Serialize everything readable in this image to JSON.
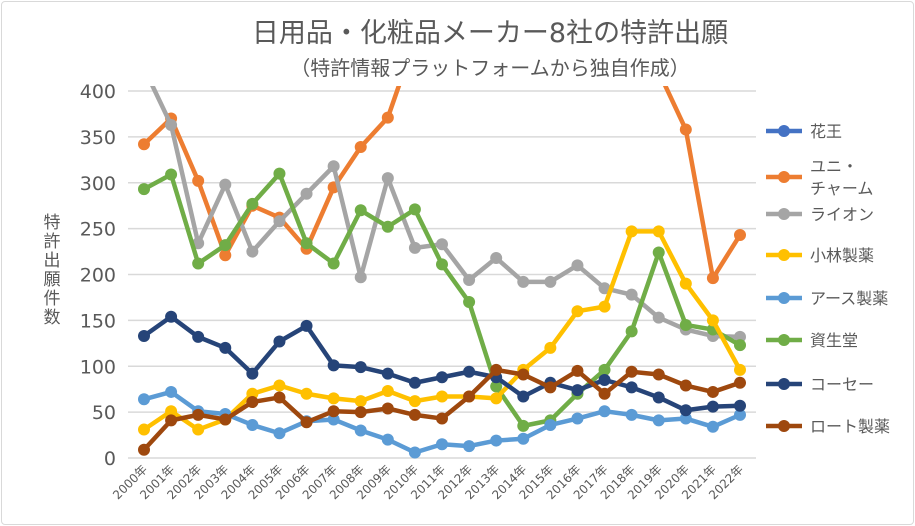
{
  "chart_data": {
    "type": "line",
    "title": "日用品・化粧品メーカー8社の特許出願",
    "subtitle": "（特許情報プラットフォームから独自作成）",
    "xlabel": "",
    "ylabel": "特許出願件数",
    "ylim": [
      0,
      400
    ],
    "yticks": [
      "0",
      "50",
      "100",
      "150",
      "200",
      "250",
      "300",
      "350",
      "400"
    ],
    "grid": true,
    "legend_position": "right",
    "categories": [
      "2000年",
      "2001年",
      "2002年",
      "2003年",
      "2004年",
      "2005年",
      "2006年",
      "2007年",
      "2008年",
      "2009年",
      "2010年",
      "2011年",
      "2012年",
      "2013年",
      "2014年",
      "2015年",
      "2016年",
      "2017年",
      "2018年",
      "2019年",
      "2020年",
      "2021年",
      "2022年"
    ],
    "series": [
      {
        "name": "花王",
        "legend": [
          "花王"
        ],
        "color": "#4472C4",
        "values": [
          null,
          null,
          null,
          null,
          null,
          null,
          null,
          null,
          null,
          null,
          null,
          null,
          null,
          null,
          null,
          null,
          null,
          null,
          null,
          null,
          null,
          null,
          null
        ]
      },
      {
        "name": "ユニ・チャーム",
        "legend": [
          "ユニ・",
          "チャーム"
        ],
        "color": "#ED7D31",
        "values": [
          342,
          370,
          302,
          221,
          275,
          262,
          228,
          295,
          339,
          371,
          456,
          null,
          null,
          null,
          null,
          null,
          null,
          null,
          null,
          421,
          358,
          196,
          243
        ]
      },
      {
        "name": "ライオン",
        "legend": [
          "ライオン"
        ],
        "color": "#A5A5A5",
        "values": [
          425,
          363,
          234,
          298,
          225,
          258,
          288,
          318,
          197,
          305,
          229,
          233,
          194,
          218,
          192,
          192,
          210,
          185,
          178,
          153,
          140,
          133,
          132
        ]
      },
      {
        "name": "小林製薬",
        "legend": [
          "小林製薬"
        ],
        "color": "#FFC000",
        "values": [
          31,
          51,
          31,
          42,
          70,
          79,
          70,
          65,
          62,
          73,
          62,
          67,
          67,
          65,
          96,
          120,
          160,
          165,
          247,
          247,
          190,
          150,
          96
        ]
      },
      {
        "name": "アース製薬",
        "legend": [
          "アース製薬"
        ],
        "color": "#5B9BD5",
        "values": [
          64,
          72,
          51,
          48,
          36,
          27,
          40,
          42,
          30,
          20,
          6,
          15,
          13,
          19,
          21,
          36,
          43,
          51,
          47,
          41,
          43,
          34,
          47
        ]
      },
      {
        "name": "資生堂",
        "legend": [
          "資生堂"
        ],
        "color": "#70AD47",
        "values": [
          293,
          309,
          212,
          232,
          277,
          310,
          234,
          212,
          270,
          252,
          271,
          211,
          170,
          78,
          35,
          41,
          70,
          96,
          138,
          224,
          145,
          140,
          123
        ]
      },
      {
        "name": "コーセー",
        "legend": [
          "コーセー"
        ],
        "color": "#264478",
        "values": [
          133,
          154,
          132,
          120,
          92,
          127,
          144,
          101,
          99,
          92,
          82,
          88,
          94,
          88,
          67,
          82,
          74,
          85,
          77,
          66,
          52,
          56,
          57
        ]
      },
      {
        "name": "ロート製薬",
        "legend": [
          "ロート製薬"
        ],
        "color": "#9E480E",
        "values": [
          9,
          41,
          47,
          42,
          61,
          66,
          39,
          51,
          50,
          54,
          47,
          43,
          67,
          96,
          91,
          77,
          95,
          70,
          94,
          91,
          79,
          72,
          82
        ]
      }
    ]
  }
}
